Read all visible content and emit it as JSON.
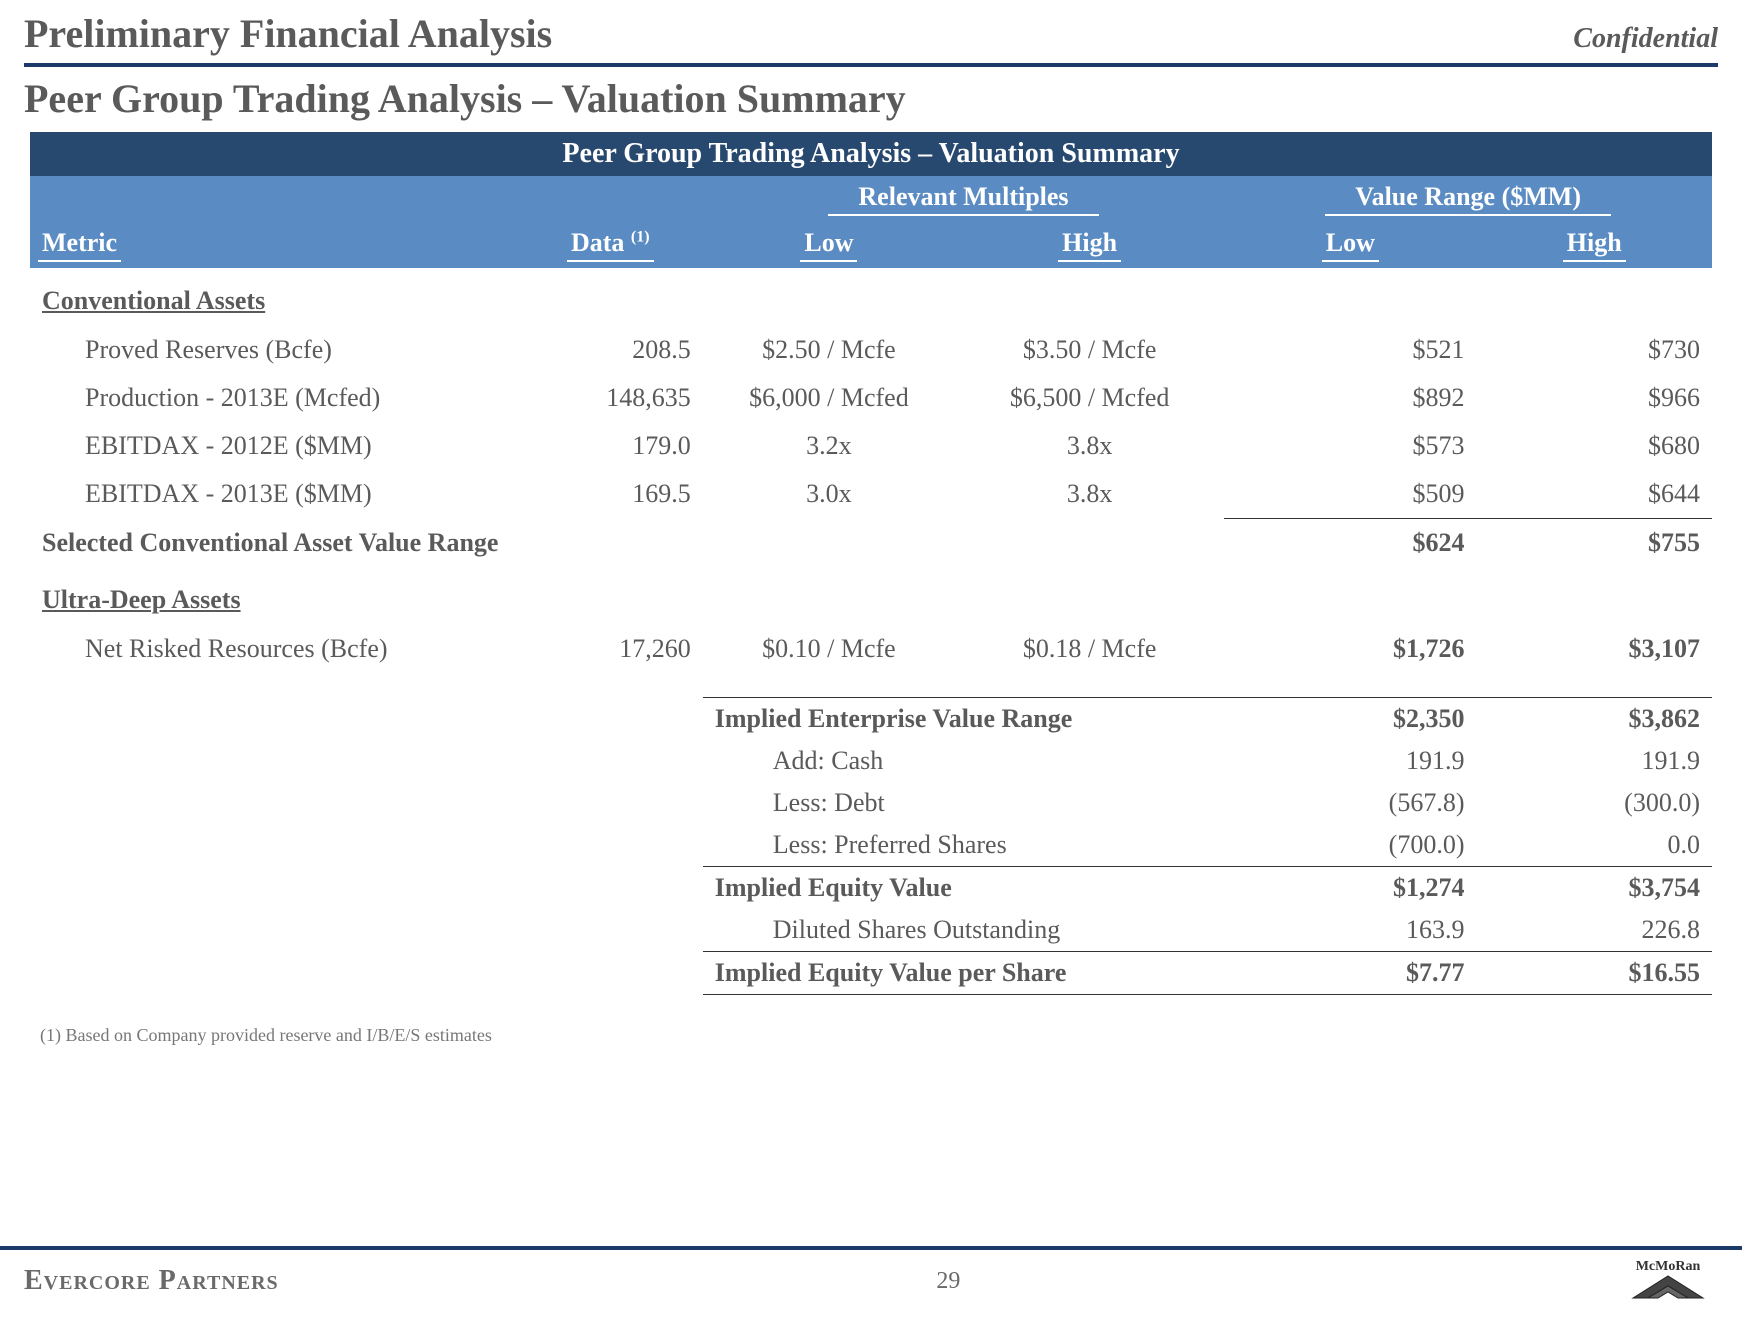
{
  "header": {
    "pfa": "Preliminary Financial Analysis",
    "confidential": "Confidential",
    "subtitle": "Peer Group Trading Analysis – Valuation Summary"
  },
  "table": {
    "banner": "Peer Group Trading Analysis – Valuation Summary",
    "col_groups": {
      "multiples": "Relevant Multiples",
      "value_range": "Value Range ($MM)"
    },
    "cols": {
      "metric": "Metric",
      "data": "Data",
      "data_sup": "(1)",
      "low": "Low",
      "high": "High",
      "vr_low": "Low",
      "vr_high": "High"
    },
    "section_conv": "Conventional Assets",
    "conv_rows": [
      {
        "metric": "Proved Reserves (Bcfe)",
        "data": "208.5",
        "low": "$2.50 / Mcfe",
        "high": "$3.50 / Mcfe",
        "vr_low": "$521",
        "vr_high": "$730"
      },
      {
        "metric": "Production - 2013E (Mcfed)",
        "data": "148,635",
        "low": "$6,000 / Mcfed",
        "high": "$6,500 / Mcfed",
        "vr_low": "$892",
        "vr_high": "$966"
      },
      {
        "metric": "EBITDAX - 2012E ($MM)",
        "data": "179.0",
        "low": "3.2x",
        "high": "3.8x",
        "vr_low": "$573",
        "vr_high": "$680"
      },
      {
        "metric": "EBITDAX - 2013E ($MM)",
        "data": "169.5",
        "low": "3.0x",
        "high": "3.8x",
        "vr_low": "$509",
        "vr_high": "$644"
      }
    ],
    "conv_total": {
      "label": "Selected Conventional Asset Value Range",
      "vr_low": "$624",
      "vr_high": "$755"
    },
    "section_ultra": "Ultra-Deep Assets",
    "ultra_rows": [
      {
        "metric": "Net Risked Resources (Bcfe)",
        "data": "17,260",
        "low": "$0.10 / Mcfe",
        "high": "$0.18 / Mcfe",
        "vr_low": "$1,726",
        "vr_high": "$3,107"
      }
    ],
    "summary": [
      {
        "label": "Implied Enterprise Value Range",
        "low": "$2,350",
        "high": "$3,862",
        "bold": true,
        "top_border": true
      },
      {
        "label": "Add: Cash",
        "low": "191.9",
        "high": "191.9",
        "indent": true
      },
      {
        "label": "Less: Debt",
        "low": "(567.8)",
        "high": "(300.0)",
        "indent": true
      },
      {
        "label": "Less: Preferred Shares",
        "low": "(700.0)",
        "high": "0.0",
        "indent": true
      },
      {
        "label": "Implied Equity Value",
        "low": "$1,274",
        "high": "$3,754",
        "bold": true,
        "top_border": true
      },
      {
        "label": "Diluted Shares Outstanding",
        "low": "163.9",
        "high": "226.8",
        "indent": true
      },
      {
        "label": "Implied Equity Value per Share",
        "low": "$7.77",
        "high": "$16.55",
        "bold": true,
        "top_border": true,
        "bottom_border": true
      }
    ]
  },
  "footnote": "(1)    Based on Company provided reserve and I/B/E/S estimates",
  "footer": {
    "left": "Evercore Partners",
    "page": "29",
    "logo": "McMoRan"
  },
  "colors": {
    "navy": "#1d3b6a",
    "banner_dark": "#28496f",
    "banner_light": "#5a8cc3",
    "text": "#5a5a5a"
  }
}
